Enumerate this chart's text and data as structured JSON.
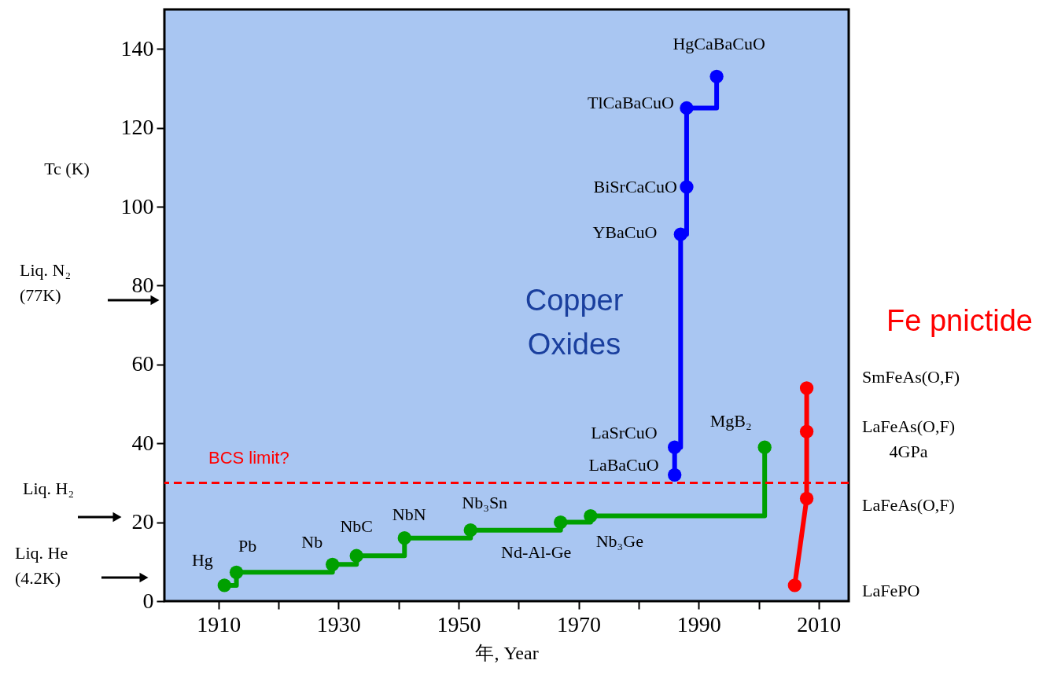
{
  "chart_data": {
    "type": "step",
    "xlabel": "年, Year",
    "ylabel": "Tc (K)",
    "xlim": [
      1901,
      2015
    ],
    "ylim": [
      0,
      150
    ],
    "xticks": [
      1910,
      {
        "value": 1920,
        "label": null
      },
      1930,
      {
        "value": 1940,
        "label": null
      },
      1950,
      {
        "value": 1960,
        "label": null
      },
      1970,
      {
        "value": 1980,
        "label": null
      },
      1990,
      {
        "value": 2000,
        "label": null
      },
      2010
    ],
    "yticks": [
      0,
      20,
      40,
      60,
      80,
      100,
      120,
      140
    ],
    "grid": false,
    "marker": "circle",
    "line_style": "solid",
    "series": [
      {
        "color": "#00a000",
        "x": [
          1911,
          1913,
          1929,
          1933,
          1941,
          1952,
          1967,
          1972,
          2001
        ],
        "values": [
          4,
          7.3,
          9.3,
          11.5,
          16,
          18,
          20,
          21.6,
          39
        ]
      },
      {
        "name": "Copper Oxides",
        "color": "#0000ff",
        "x": [
          1986,
          1986,
          1987,
          1988,
          1988,
          1993
        ],
        "values": [
          32,
          39,
          93,
          105,
          125,
          133
        ]
      },
      {
        "type": "line",
        "name": "Fe pnictide",
        "color": "#ff0000",
        "x": [
          2006,
          2008,
          2008,
          2008
        ],
        "values": [
          4,
          26,
          43,
          54
        ]
      }
    ],
    "ref_lines": [
      {
        "axis": "y",
        "value": 30,
        "label": "BCS limit?",
        "color": "#ff0000",
        "line_style": "dashed"
      }
    ],
    "annotations": [
      "Liq. N₂\n(77K)",
      "Liq. H₂",
      "Liq. He\n(4.2K)",
      {
        "text": "Hg",
        "x": 1911,
        "y": 4
      },
      {
        "text": "Pb",
        "x": 1913,
        "y": 7.3
      },
      {
        "text": "Nb",
        "x": 1929,
        "y": 9.3
      },
      {
        "text": "NbC",
        "x": 1933,
        "y": 11.5
      },
      {
        "text": "NbN",
        "x": 1941,
        "y": 16
      },
      {
        "text": "Nb₃Sn",
        "x": 1952,
        "y": 18
      },
      {
        "text": "Nd-Al-Ge",
        "x": 1967,
        "y": 20
      },
      {
        "text": "Nb₃Ge",
        "x": 1972,
        "y": 21.6
      },
      {
        "text": "MgB₂",
        "x": 2001,
        "y": 39
      },
      {
        "text": "LaBaCuO",
        "x": 1986,
        "y": 32
      },
      {
        "text": "LaSrCuO",
        "x": 1986,
        "y": 39
      },
      {
        "text": "YBaCuO",
        "x": 1987,
        "y": 93
      },
      {
        "text": "BiSrCaCuO",
        "x": 1988,
        "y": 105
      },
      {
        "text": "TlCaBaCuO",
        "x": 1988,
        "y": 125
      },
      {
        "text": "HgCaBaCuO",
        "x": 1993,
        "y": 133
      },
      "LaFePO",
      "LaFeAs(O,F)",
      "LaFeAs(O,F)\n4GPa",
      "SmFeAs(O,F)"
    ]
  }
}
